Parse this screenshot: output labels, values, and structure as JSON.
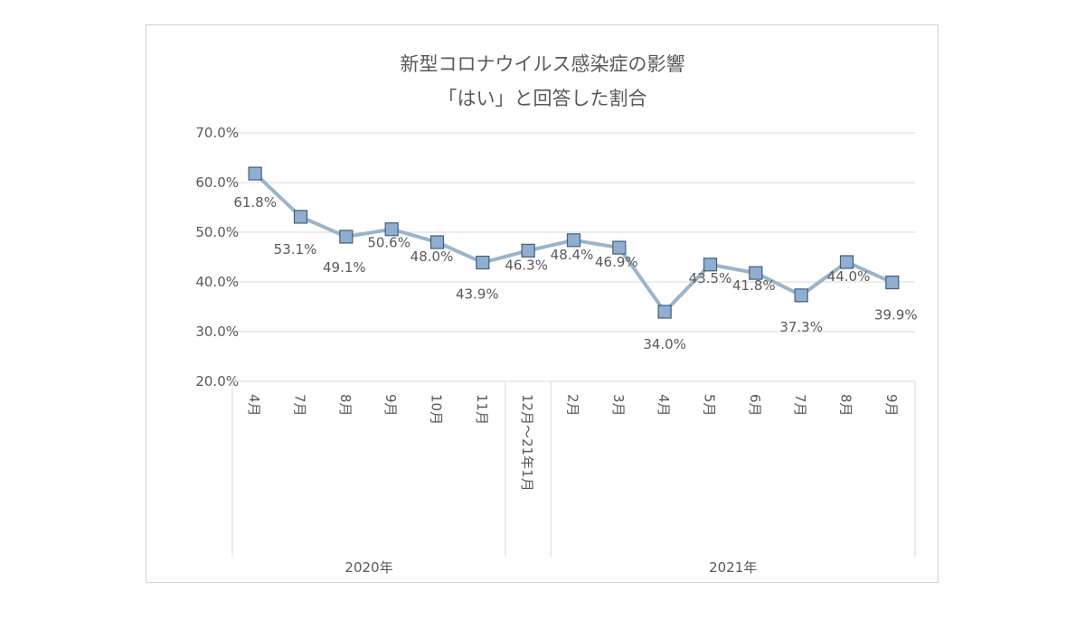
{
  "chart_data": {
    "type": "line",
    "title_lines": [
      "新型コロナウイルス感染症の影響",
      "「はい」と回答した割合"
    ],
    "y_ticks": [
      "70.0%",
      "60.0%",
      "50.0%",
      "40.0%",
      "30.0%",
      "20.0%"
    ],
    "ylim": [
      20,
      70
    ],
    "y_unit": "%",
    "categories": [
      "4月",
      "7月",
      "8月",
      "9月",
      "10月",
      "11月",
      "12月～21年1月",
      "2月",
      "3月",
      "4月",
      "5月",
      "6月",
      "7月",
      "8月",
      "9月"
    ],
    "series": [
      {
        "values": [
          61.8,
          53.1,
          49.1,
          50.6,
          48.0,
          43.9,
          46.3,
          48.4,
          46.9,
          34.0,
          43.5,
          41.8,
          37.3,
          44.0,
          39.9
        ],
        "labels": [
          "61.8%",
          "53.1%",
          "49.1%",
          "50.6%",
          "48.0%",
          "43.9%",
          "46.3%",
          "48.4%",
          "46.9%",
          "34.0%",
          "43.5%",
          "41.8%",
          "37.3%",
          "44.0%",
          "39.9%"
        ],
        "color": "#9bb4c8",
        "marker_fill": "#8faed0",
        "marker_stroke": "#3f5f7f"
      }
    ],
    "groups": [
      {
        "label": "2020年",
        "start": 0,
        "end": 5
      },
      {
        "label": "",
        "start": 6,
        "end": 6
      },
      {
        "label": "2021年",
        "start": 7,
        "end": 14
      }
    ],
    "grid": true,
    "legend": "none"
  }
}
